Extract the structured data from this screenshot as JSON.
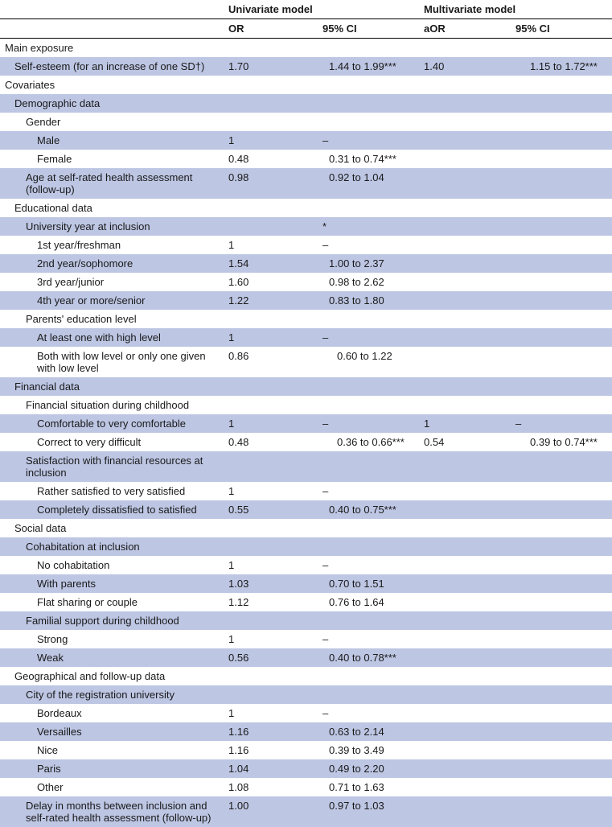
{
  "headers": {
    "uni": "Univariate model",
    "multi": "Multivariate model",
    "or": "OR",
    "ci": "95% CI",
    "aor": "aOR"
  },
  "rows": [
    {
      "label": "Main exposure",
      "ind": 0,
      "shade": false
    },
    {
      "label": "Self-esteem (for an increase of one SD†)",
      "ind": 1,
      "shade": true,
      "or": "1.70",
      "ci": "1.44 to 1.99***",
      "aor": "1.40",
      "aci": "1.15 to 1.72***",
      "cip": "a",
      "acip": "b"
    },
    {
      "label": "Covariates",
      "ind": 0,
      "shade": false
    },
    {
      "label": "Demographic data",
      "ind": 1,
      "shade": true
    },
    {
      "label": "Gender",
      "ind": 2,
      "shade": false
    },
    {
      "label": "Male",
      "ind": 3,
      "shade": true,
      "or": "1",
      "ci": "–"
    },
    {
      "label": "Female",
      "ind": 3,
      "shade": false,
      "or": "0.48",
      "ci": "0.31 to 0.74***",
      "cip": "a"
    },
    {
      "label": "Age at self-rated health assessment (follow-up)",
      "ind": 2,
      "shade": true,
      "or": "0.98",
      "ci": "0.92 to 1.04",
      "cip": "a"
    },
    {
      "label": "Educational data",
      "ind": 1,
      "shade": false
    },
    {
      "label": "University year at inclusion",
      "ind": 2,
      "shade": true,
      "ci": "*"
    },
    {
      "label": "1st year/freshman",
      "ind": 3,
      "shade": false,
      "or": "1",
      "ci": "–"
    },
    {
      "label": "2nd year/sophomore",
      "ind": 3,
      "shade": true,
      "or": "1.54",
      "ci": "1.00 to 2.37",
      "cip": "a"
    },
    {
      "label": "3rd year/junior",
      "ind": 3,
      "shade": false,
      "or": "1.60",
      "ci": "0.98 to 2.62",
      "cip": "a"
    },
    {
      "label": "4th year or more/senior",
      "ind": 3,
      "shade": true,
      "or": "1.22",
      "ci": "0.83 to 1.80",
      "cip": "a"
    },
    {
      "label": "Parents' education level",
      "ind": 2,
      "shade": false
    },
    {
      "label": "At least one with high level",
      "ind": 3,
      "shade": true,
      "or": "1",
      "ci": "–"
    },
    {
      "label": "Both with low level or only one given with low level",
      "ind": 3,
      "shade": false,
      "or": "0.86",
      "ci": "0.60 to 1.22",
      "cip": "b"
    },
    {
      "label": "Financial data",
      "ind": 1,
      "shade": true
    },
    {
      "label": "Financial situation during childhood",
      "ind": 2,
      "shade": false
    },
    {
      "label": "Comfortable to very comfortable",
      "ind": 3,
      "shade": true,
      "or": "1",
      "ci": "–",
      "aor": "1",
      "aci": "–"
    },
    {
      "label": "Correct to very difficult",
      "ind": 3,
      "shade": false,
      "or": "0.48",
      "ci": "0.36 to 0.66***",
      "aor": "0.54",
      "aci": "0.39 to 0.74***",
      "cip": "b",
      "acip": "b"
    },
    {
      "label": "Satisfaction with financial resources at inclusion",
      "ind": 2,
      "shade": true
    },
    {
      "label": "Rather satisfied to very satisfied",
      "ind": 3,
      "shade": false,
      "or": "1",
      "ci": "–"
    },
    {
      "label": "Completely dissatisfied to satisfied",
      "ind": 3,
      "shade": true,
      "or": "0.55",
      "ci": "0.40 to 0.75***",
      "cip": "a"
    },
    {
      "label": "Social data",
      "ind": 1,
      "shade": false
    },
    {
      "label": "Cohabitation at inclusion",
      "ind": 2,
      "shade": true
    },
    {
      "label": "No cohabitation",
      "ind": 3,
      "shade": false,
      "or": "1",
      "ci": "–"
    },
    {
      "label": "With parents",
      "ind": 3,
      "shade": true,
      "or": "1.03",
      "ci": "0.70 to 1.51",
      "cip": "a"
    },
    {
      "label": "Flat sharing or couple",
      "ind": 3,
      "shade": false,
      "or": "1.12",
      "ci": "0.76 to 1.64",
      "cip": "a"
    },
    {
      "label": "Familial support during childhood",
      "ind": 2,
      "shade": true
    },
    {
      "label": "Strong",
      "ind": 3,
      "shade": false,
      "or": "1",
      "ci": "–"
    },
    {
      "label": "Weak",
      "ind": 3,
      "shade": true,
      "or": "0.56",
      "ci": "0.40 to 0.78***",
      "cip": "a"
    },
    {
      "label": "Geographical and follow-up data",
      "ind": 1,
      "shade": false
    },
    {
      "label": "City of the registration university",
      "ind": 2,
      "shade": true
    },
    {
      "label": "Bordeaux",
      "ind": 3,
      "shade": false,
      "or": "1",
      "ci": "–"
    },
    {
      "label": "Versailles",
      "ind": 3,
      "shade": true,
      "or": "1.16",
      "ci": "0.63 to 2.14",
      "cip": "a"
    },
    {
      "label": "Nice",
      "ind": 3,
      "shade": false,
      "or": "1.16",
      "ci": "0.39 to 3.49",
      "cip": "a"
    },
    {
      "label": "Paris",
      "ind": 3,
      "shade": true,
      "or": "1.04",
      "ci": "0.49 to 2.20",
      "cip": "a"
    },
    {
      "label": "Other",
      "ind": 3,
      "shade": false,
      "or": "1.08",
      "ci": "0.71 to 1.63",
      "cip": "a"
    },
    {
      "label": "Delay in months between inclusion and self-rated health assessment (follow-up)",
      "ind": 2,
      "shade": true,
      "or": "1.00",
      "ci": "0.97 to 1.03",
      "cip": "a"
    }
  ]
}
